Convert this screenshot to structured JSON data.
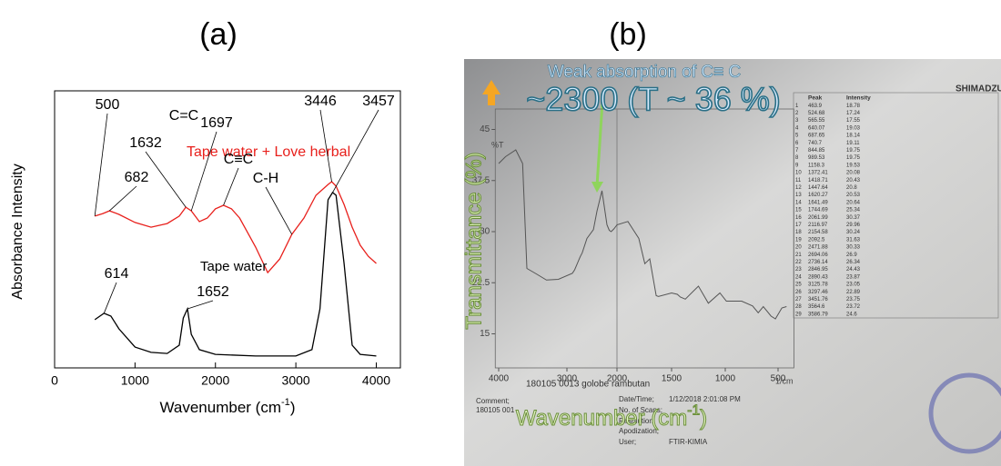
{
  "chart_data": [
    {
      "type": "line",
      "title": "(a)",
      "ylabel": "Absorbance Intensity",
      "xlabel": [
        "Wavenumber (cm",
        "-1",
        ")"
      ],
      "xlim": [
        0,
        4300
      ],
      "xticks": [
        0,
        1000,
        2000,
        3000,
        4000
      ],
      "ylim": [
        0,
        1
      ],
      "annotations": [
        "500",
        "682",
        "1632",
        "C=C",
        "1697",
        "C≡C",
        "C-H",
        "3446",
        "3457",
        "614",
        "1652"
      ],
      "series": [
        {
          "name": "Tape water + Love herbal",
          "color": "#e8201c",
          "x": [
            500,
            600,
            682,
            800,
            1000,
            1200,
            1400,
            1550,
            1632,
            1700,
            1800,
            1900,
            2000,
            2100,
            2200,
            2300,
            2500,
            2650,
            2800,
            2950,
            3100,
            3250,
            3400,
            3446,
            3500,
            3600,
            3700,
            3800,
            3900,
            4000
          ],
          "values": [
            0.548,
            0.557,
            0.567,
            0.554,
            0.525,
            0.508,
            0.521,
            0.548,
            0.58,
            0.567,
            0.528,
            0.541,
            0.574,
            0.587,
            0.574,
            0.541,
            0.436,
            0.344,
            0.393,
            0.482,
            0.541,
            0.623,
            0.662,
            0.672,
            0.656,
            0.59,
            0.508,
            0.443,
            0.403,
            0.377
          ]
        },
        {
          "name": "Tape water",
          "color": "#000000",
          "x": [
            500,
            614,
            700,
            800,
            1000,
            1200,
            1400,
            1550,
            1600,
            1652,
            1700,
            1800,
            2000,
            2500,
            3000,
            3200,
            3300,
            3400,
            3457,
            3500,
            3600,
            3700,
            3800,
            4000
          ],
          "values": [
            0.174,
            0.197,
            0.187,
            0.141,
            0.075,
            0.056,
            0.052,
            0.082,
            0.18,
            0.213,
            0.121,
            0.066,
            0.049,
            0.043,
            0.043,
            0.066,
            0.213,
            0.607,
            0.633,
            0.623,
            0.377,
            0.082,
            0.049,
            0.043
          ]
        }
      ]
    },
    {
      "type": "line",
      "title": "(b)",
      "ylabel": "Transmittance (%)",
      "xlabel": [
        "Wavenumber (cm",
        "-1",
        ")"
      ],
      "annotation": "Weak absorption of C≡ C",
      "annotation_value": "~2300 (T ~ 36 %)",
      "axis_title_print": "%T",
      "x_unit": "1/cm",
      "brand": "SHIMADZU",
      "sample": "180105 0013 golobe rambutan",
      "print_texts": [
        "Comment;",
        "180105 001",
        "Date/Time;",
        "1/12/2018 2:01:08 PM",
        "No. of Scans;",
        "Resolution;",
        "Apodization;",
        "User;",
        "FTIR-KIMIA"
      ],
      "xlim": [
        4050,
        350
      ],
      "xticks": [
        4000,
        3000,
        2000,
        1500,
        1000,
        500
      ],
      "ylim": [
        10,
        48
      ],
      "yticks": [
        45,
        37.5,
        30,
        22.5,
        15
      ],
      "series": [
        {
          "color": "#555555",
          "x": [
            4000,
            3900,
            3750,
            3650,
            3586,
            3450,
            3300,
            3125,
            2890,
            2846,
            2736,
            2694,
            2600,
            2471,
            2400,
            2300,
            2200,
            2154,
            2117,
            2062,
            2000,
            1900,
            1800,
            1745,
            1700,
            1641,
            1620,
            1500,
            1447,
            1419,
            1372,
            1250,
            1158,
            1050,
            990,
            845,
            741,
            688,
            640,
            566,
            525,
            464,
            420
          ],
          "values": [
            40,
            41,
            42,
            40,
            24.6,
            23.8,
            22.9,
            23,
            23.9,
            24.4,
            26.3,
            26.9,
            29,
            30.3,
            33,
            36,
            31,
            30.2,
            30,
            30.4,
            31,
            31.5,
            29,
            25.3,
            26,
            20.6,
            20.5,
            21,
            20.8,
            20.4,
            20.1,
            22,
            19.5,
            21,
            19.8,
            19.8,
            19.1,
            18.1,
            19,
            17.6,
            17.2,
            18.8,
            19
          ]
        }
      ],
      "peak_table": {
        "columns": [
          "",
          "Peak",
          "Intensity"
        ],
        "rows": [
          [
            1,
            463.9,
            18.78
          ],
          [
            2,
            524.68,
            17.24
          ],
          [
            3,
            565.55,
            17.55
          ],
          [
            4,
            640.07,
            19.03
          ],
          [
            5,
            687.65,
            18.14
          ],
          [
            6,
            740.7,
            19.11
          ],
          [
            7,
            844.85,
            19.75
          ],
          [
            8,
            989.53,
            19.75
          ],
          [
            9,
            1158.3,
            19.53
          ],
          [
            10,
            1372.41,
            20.08
          ],
          [
            11,
            1418.71,
            20.43
          ],
          [
            12,
            1447.64,
            20.8
          ],
          [
            13,
            1620.27,
            20.53
          ],
          [
            14,
            1641.49,
            20.64
          ],
          [
            15,
            1744.69,
            25.34
          ],
          [
            16,
            2061.99,
            30.37
          ],
          [
            17,
            2116.97,
            29.96
          ],
          [
            18,
            2154.58,
            30.24
          ],
          [
            19,
            2092.5,
            31.63
          ],
          [
            20,
            2471.88,
            30.33
          ],
          [
            21,
            2694.06,
            26.9
          ],
          [
            22,
            2736.14,
            26.34
          ],
          [
            23,
            2846.95,
            24.43
          ],
          [
            24,
            2890.43,
            23.87
          ],
          [
            25,
            3125.78,
            23.05
          ],
          [
            26,
            3297.46,
            22.89
          ],
          [
            27,
            3451.76,
            23.75
          ],
          [
            28,
            3564.6,
            23.72
          ],
          [
            29,
            3586.79,
            24.6
          ]
        ]
      }
    }
  ]
}
